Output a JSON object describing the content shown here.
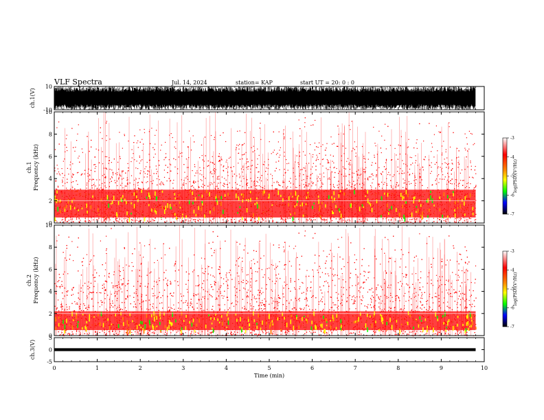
{
  "header": {
    "title": "VLF Spectra",
    "date": "Jul. 14, 2024",
    "station": "station= KAP",
    "start": "start  UT =   20: 0  : 0"
  },
  "chart_data": [
    {
      "type": "line",
      "name": "ch1-waveform",
      "ylabel": "ch.1(V)",
      "ylim": [
        -10,
        10
      ],
      "yticks": [
        "10",
        "-10"
      ],
      "xlim": [
        0,
        10
      ],
      "data_extent_min": [
        0,
        9.8
      ],
      "trace_color": "#000000",
      "note_range_values": [
        -10,
        10
      ]
    },
    {
      "type": "heatmap",
      "name": "ch1-spectrogram",
      "ylabel": "ch.1\nFrequency (kHz)",
      "ylim": [
        0,
        10
      ],
      "yticks": [
        "0",
        "2",
        "4",
        "6",
        "8",
        "10"
      ],
      "xlim": [
        0,
        9.8
      ],
      "strong_band_khz": [
        0.5,
        3.0
      ],
      "colorbar": {
        "label": "log(PSD)(V²/Hz)",
        "range": [
          -7,
          -3
        ],
        "ticks": [
          "-3",
          "-4",
          "-5",
          "-6",
          "-7"
        ],
        "colors": [
          "#ffffff",
          "#ff0000",
          "#ffff00",
          "#00ff00",
          "#0000ff",
          "#000000"
        ]
      }
    },
    {
      "type": "heatmap",
      "name": "ch2-spectrogram",
      "ylabel": "ch.2\nFrequency (kHz)",
      "ylim": [
        0,
        10
      ],
      "yticks": [
        "0",
        "2",
        "4",
        "6",
        "8",
        "10"
      ],
      "xlim": [
        0,
        9.8
      ],
      "strong_band_khz": [
        0.5,
        2.2
      ],
      "colorbar": {
        "label": "log(PSD)(V²/Hz)",
        "range": [
          -7,
          -3
        ],
        "ticks": [
          "-3",
          "-4",
          "-5",
          "-6",
          "-7"
        ],
        "colors": [
          "#ffffff",
          "#ff0000",
          "#ffff00",
          "#00ff00",
          "#0000ff",
          "#000000"
        ]
      }
    },
    {
      "type": "line",
      "name": "ch3-waveform",
      "ylabel": "ch.3(V)",
      "ylim": [
        -5,
        5
      ],
      "yticks": [
        "5",
        "0",
        "-5"
      ],
      "xlim": [
        0,
        10
      ],
      "band_values": [
        -0.6,
        0.6
      ],
      "trace_color": "#000000"
    }
  ],
  "xaxis": {
    "label": "Time (min)",
    "ticks": [
      "0",
      "1",
      "2",
      "3",
      "4",
      "5",
      "6",
      "7",
      "8",
      "9",
      "10"
    ],
    "range": [
      0,
      10
    ]
  }
}
